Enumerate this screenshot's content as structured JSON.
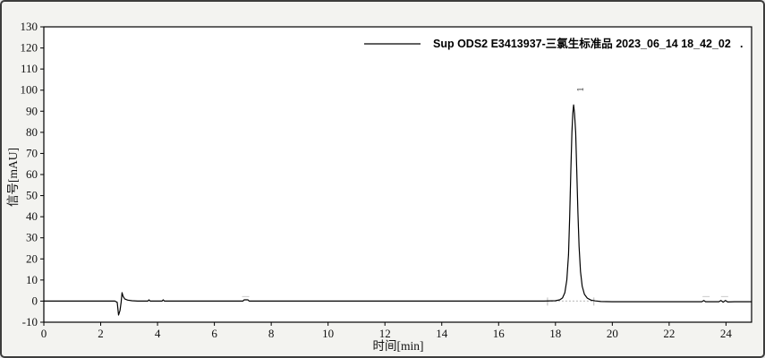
{
  "window": {
    "background_color": "#f3f3f0",
    "border_color": "#3c3c3c",
    "plot_background_color": "#ffffff",
    "axis_color": "#000000"
  },
  "legend": {
    "suffix_dot": "."
  },
  "chart_data": {
    "type": "line",
    "title": "",
    "xlabel": "时间[min]",
    "ylabel": "信号[mAU]",
    "xlim": [
      0,
      24.9
    ],
    "ylim": [
      -10,
      130
    ],
    "x_ticks": [
      0,
      2,
      4,
      6,
      8,
      10,
      12,
      14,
      16,
      18,
      20,
      22,
      24
    ],
    "y_ticks": [
      -10,
      0,
      10,
      20,
      30,
      40,
      50,
      60,
      70,
      80,
      90,
      100,
      110,
      120,
      130
    ],
    "grid": false,
    "legend_position": "top-right",
    "series": [
      {
        "name": "Sup ODS2 E3413937-三氯生标准品 2023_06_14 18_42_02",
        "color": "#000000",
        "points": [
          [
            0,
            0
          ],
          [
            2.5,
            0
          ],
          [
            2.58,
            -0.6
          ],
          [
            2.63,
            -6.6
          ],
          [
            2.68,
            -4.5
          ],
          [
            2.72,
            -0.5
          ],
          [
            2.75,
            4.0
          ],
          [
            2.79,
            2.2
          ],
          [
            2.85,
            1.0
          ],
          [
            2.95,
            0.5
          ],
          [
            3.1,
            0.2
          ],
          [
            3.3,
            0
          ],
          [
            3.66,
            0
          ],
          [
            3.7,
            0.6
          ],
          [
            3.74,
            0
          ],
          [
            4.16,
            0
          ],
          [
            4.2,
            0.6
          ],
          [
            4.24,
            0
          ],
          [
            7.0,
            0
          ],
          [
            7.05,
            0.6
          ],
          [
            7.18,
            0.6
          ],
          [
            7.22,
            0
          ],
          [
            17.6,
            0
          ],
          [
            18.0,
            0.2
          ],
          [
            18.15,
            0.6
          ],
          [
            18.25,
            1.5
          ],
          [
            18.33,
            4
          ],
          [
            18.4,
            10
          ],
          [
            18.46,
            22
          ],
          [
            18.5,
            40
          ],
          [
            18.54,
            62
          ],
          [
            18.58,
            80
          ],
          [
            18.61,
            89
          ],
          [
            18.64,
            93
          ],
          [
            18.67,
            89
          ],
          [
            18.71,
            80
          ],
          [
            18.75,
            62
          ],
          [
            18.79,
            42
          ],
          [
            18.83,
            26
          ],
          [
            18.88,
            14
          ],
          [
            18.94,
            7
          ],
          [
            19.02,
            3.2
          ],
          [
            19.12,
            1.4
          ],
          [
            19.25,
            0.5
          ],
          [
            19.4,
            0.1
          ],
          [
            19.6,
            -0.2
          ],
          [
            20.0,
            -0.3
          ],
          [
            23.15,
            -0.3
          ],
          [
            23.22,
            0.3
          ],
          [
            23.28,
            -0.3
          ],
          [
            23.75,
            -0.3
          ],
          [
            23.82,
            0.3
          ],
          [
            23.9,
            -0.5
          ],
          [
            23.98,
            0.3
          ],
          [
            24.06,
            -0.4
          ],
          [
            24.3,
            -0.3
          ],
          [
            24.9,
            -0.3
          ]
        ]
      }
    ],
    "peaks": [
      {
        "label": "1",
        "retention_time_min": 18.64,
        "apex_mAU": 93
      }
    ],
    "integration": {
      "baseline_mAU": 0,
      "start_min": 17.72,
      "end_min": 19.35,
      "color": "#c4c4c4"
    },
    "minor_mark_times_min": [
      7.1,
      23.3,
      23.95
    ]
  }
}
